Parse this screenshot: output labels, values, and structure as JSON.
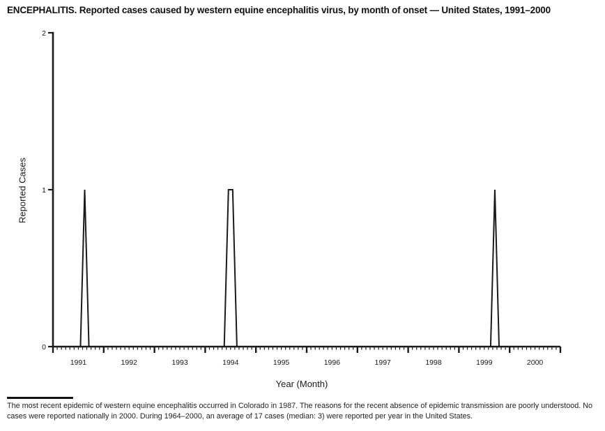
{
  "page": {
    "footnote": "The most recent epidemic of western equine encephalitis occurred in Colorado in 1987. The reasons for the recent absence of epidemic transmission are poorly understood. No cases were reported nationally in 2000. During 1964–2000, an average of 17 cases (median: 3) were reported per year in the United States.",
    "colors": {
      "ink": "#1a1a1a",
      "background": "#ffffff"
    }
  },
  "chart_data": {
    "type": "line",
    "title": "ENCEPHALITIS. Reported cases caused by western equine encephalitis virus, by month of onset — United States, 1991–2000",
    "xlabel": "Year (Month)",
    "ylabel": "Reported Cases",
    "ylim": [
      0,
      2
    ],
    "yticks": [
      0,
      1,
      2
    ],
    "x_years": [
      1991,
      1992,
      1993,
      1994,
      1995,
      1996,
      1997,
      1998,
      1999,
      2000
    ],
    "x_resolution": "monthly",
    "grid": false,
    "legend": "none",
    "series": [
      {
        "name": "Reported cases",
        "baseline_value": 0,
        "nonzero_points": [
          {
            "year": 1991,
            "month": "Aug",
            "value": 1
          },
          {
            "year": 1994,
            "month": "Jun",
            "value": 1
          },
          {
            "year": 1994,
            "month": "Jul",
            "value": 1
          },
          {
            "year": 1999,
            "month": "Sep",
            "value": 1
          }
        ]
      }
    ]
  }
}
